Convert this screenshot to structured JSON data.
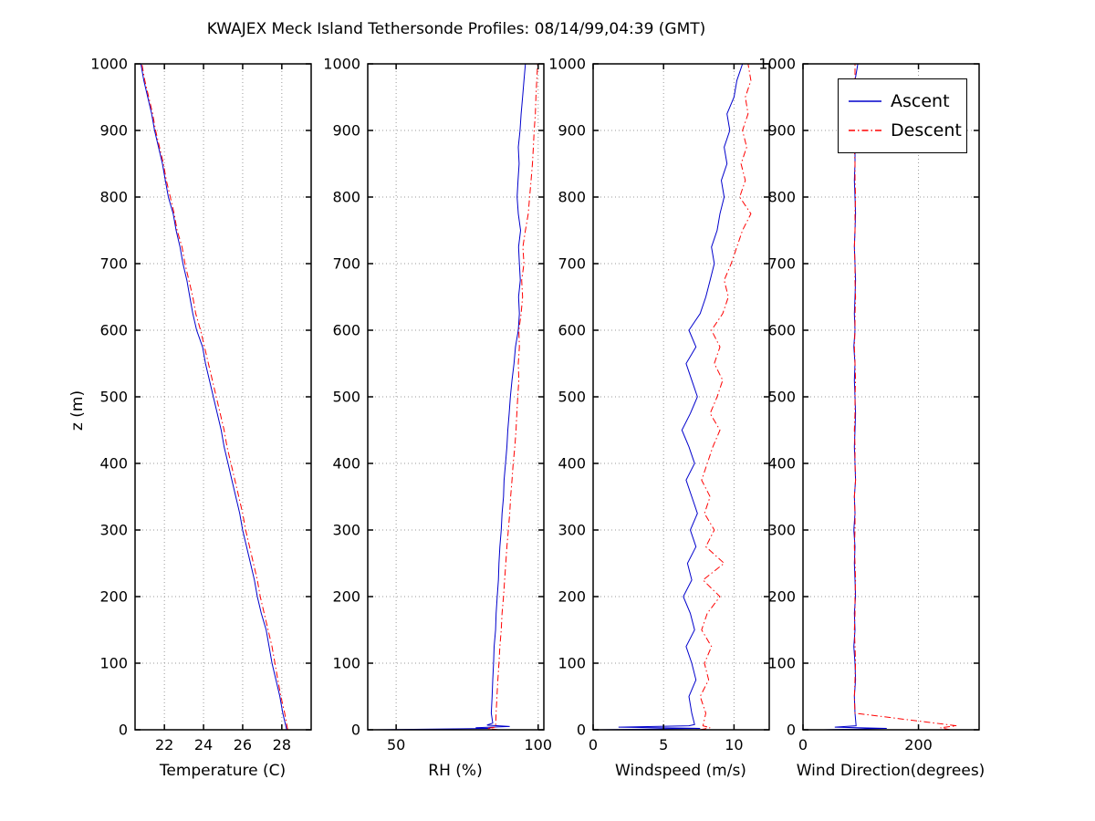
{
  "title": "KWAJEX Meck Island Tethersonde Profiles: 08/14/99,04:39 (GMT)",
  "ylabel": "z (m)",
  "legend": {
    "entries": [
      {
        "label": "Ascent",
        "color": "#0000cc",
        "dash": ""
      },
      {
        "label": "Descent",
        "color": "#ff0000",
        "dash": "7 3 1.5 3"
      }
    ]
  },
  "chart_data": [
    {
      "type": "line",
      "xlabel": "Temperature (C)",
      "xlim": [
        20.5,
        29.5
      ],
      "xticks": [
        22,
        24,
        26,
        28
      ],
      "ylim": [
        0,
        1000
      ],
      "yticks": [
        0,
        100,
        200,
        300,
        400,
        500,
        600,
        700,
        800,
        900,
        1000
      ],
      "series": [
        {
          "name": "Ascent",
          "color": "#0000cc",
          "dash": "",
          "z": [
            0,
            25,
            50,
            75,
            100,
            125,
            150,
            175,
            200,
            225,
            250,
            275,
            300,
            325,
            350,
            375,
            400,
            425,
            450,
            475,
            500,
            525,
            550,
            575,
            600,
            625,
            650,
            675,
            700,
            725,
            750,
            775,
            800,
            825,
            850,
            875,
            900,
            925,
            950,
            975,
            1000
          ],
          "x": [
            28.25,
            28.05,
            27.9,
            27.7,
            27.5,
            27.35,
            27.2,
            26.95,
            26.75,
            26.6,
            26.4,
            26.2,
            26.0,
            25.85,
            25.65,
            25.45,
            25.25,
            25.05,
            24.9,
            24.7,
            24.5,
            24.3,
            24.1,
            23.95,
            23.65,
            23.45,
            23.3,
            23.15,
            22.95,
            22.8,
            22.6,
            22.45,
            22.2,
            22.05,
            21.9,
            21.7,
            21.5,
            21.35,
            21.15,
            20.95,
            20.8
          ]
        },
        {
          "name": "Descent",
          "color": "#ff0000",
          "dash": "7 3 1.5 3",
          "z": [
            0,
            25,
            50,
            75,
            100,
            125,
            150,
            175,
            200,
            225,
            250,
            275,
            300,
            325,
            350,
            375,
            400,
            425,
            450,
            475,
            500,
            525,
            550,
            575,
            600,
            625,
            650,
            675,
            700,
            725,
            750,
            775,
            800,
            825,
            850,
            875,
            900,
            925,
            950,
            975,
            1000
          ],
          "x": [
            28.3,
            28.15,
            27.95,
            27.8,
            27.65,
            27.5,
            27.3,
            27.1,
            26.9,
            26.75,
            26.55,
            26.35,
            26.15,
            26.0,
            25.8,
            25.6,
            25.4,
            25.2,
            25.05,
            24.85,
            24.65,
            24.45,
            24.25,
            24.05,
            23.85,
            23.6,
            23.45,
            23.25,
            23.05,
            22.9,
            22.65,
            22.5,
            22.3,
            22.1,
            21.95,
            21.75,
            21.55,
            21.4,
            21.2,
            21.0,
            20.85
          ]
        }
      ]
    },
    {
      "type": "line",
      "xlabel": "RH (%)",
      "xlim": [
        40,
        102
      ],
      "xticks": [
        50,
        100
      ],
      "ylim": [
        0,
        1000
      ],
      "yticks": [
        0,
        100,
        200,
        300,
        400,
        500,
        600,
        700,
        800,
        900,
        1000
      ],
      "series": [
        {
          "name": "Ascent",
          "color": "#0000cc",
          "dash": "",
          "z": [
            0,
            2,
            3,
            5,
            7,
            10,
            25,
            50,
            75,
            100,
            125,
            150,
            175,
            200,
            225,
            250,
            275,
            300,
            325,
            350,
            375,
            400,
            425,
            450,
            475,
            500,
            525,
            550,
            575,
            600,
            625,
            650,
            675,
            700,
            725,
            750,
            775,
            800,
            825,
            850,
            875,
            900,
            925,
            950,
            975,
            1000
          ],
          "x": [
            42,
            83,
            78,
            90,
            82,
            84,
            83.5,
            83.8,
            84.0,
            84.3,
            84.5,
            85.0,
            85.2,
            85.6,
            86.0,
            86.2,
            86.5,
            87.0,
            87.3,
            87.8,
            88.0,
            88.5,
            89.0,
            89.3,
            89.8,
            90.2,
            90.8,
            91.5,
            92.0,
            93.0,
            93.4,
            93.1,
            93.7,
            93.4,
            93.1,
            93.8,
            93.0,
            92.6,
            92.9,
            93.3,
            93.0,
            93.6,
            94.0,
            94.5,
            95.0,
            95.5
          ]
        },
        {
          "name": "Descent",
          "color": "#ff0000",
          "dash": "7 3 1.5 3",
          "z": [
            0,
            2,
            4,
            25,
            50,
            75,
            100,
            125,
            150,
            175,
            200,
            225,
            250,
            275,
            300,
            325,
            350,
            375,
            400,
            425,
            450,
            475,
            500,
            525,
            550,
            575,
            600,
            625,
            650,
            675,
            700,
            725,
            750,
            775,
            800,
            825,
            850,
            875,
            900,
            925,
            950,
            975,
            1000
          ],
          "x": [
            86,
            82,
            85,
            85.2,
            85.5,
            85.8,
            86.2,
            86.5,
            87.0,
            87.3,
            87.8,
            88.2,
            88.6,
            89.0,
            89.5,
            90.0,
            90.3,
            90.8,
            91.2,
            91.8,
            92.2,
            92.5,
            92.8,
            93.2,
            93.0,
            93.4,
            93.2,
            94.0,
            94.5,
            94.2,
            95.0,
            94.6,
            95.5,
            96.5,
            97.0,
            97.5,
            98.0,
            98.3,
            98.6,
            99.0,
            99.2,
            99.5,
            99.8
          ]
        }
      ]
    },
    {
      "type": "line",
      "xlabel": "Windspeed (m/s)",
      "xlim": [
        0,
        12.5
      ],
      "xticks": [
        0,
        5,
        10
      ],
      "ylim": [
        0,
        1000
      ],
      "yticks": [
        0,
        100,
        200,
        300,
        400,
        500,
        600,
        700,
        800,
        900,
        1000
      ],
      "series": [
        {
          "name": "Ascent",
          "color": "#0000cc",
          "dash": "",
          "z": [
            0,
            2,
            4,
            6,
            8,
            25,
            50,
            75,
            100,
            125,
            150,
            175,
            200,
            225,
            250,
            275,
            300,
            325,
            350,
            375,
            400,
            425,
            450,
            475,
            500,
            525,
            550,
            575,
            600,
            625,
            650,
            675,
            700,
            725,
            750,
            775,
            800,
            825,
            850,
            875,
            900,
            925,
            950,
            975,
            1000
          ],
          "x": [
            0.4,
            7.6,
            1.8,
            6.8,
            7.2,
            7.0,
            6.8,
            7.3,
            7.0,
            6.6,
            7.2,
            6.9,
            6.4,
            7.0,
            6.7,
            7.3,
            6.9,
            7.4,
            7.0,
            6.6,
            7.2,
            6.8,
            6.3,
            6.9,
            7.4,
            7.0,
            6.6,
            7.3,
            6.8,
            7.6,
            8.0,
            8.3,
            8.6,
            8.4,
            8.8,
            9.0,
            9.3,
            9.1,
            9.5,
            9.3,
            9.7,
            9.5,
            10.0,
            10.2,
            10.6
          ]
        },
        {
          "name": "Descent",
          "color": "#ff0000",
          "dash": "7 3 1.5 3",
          "z": [
            0,
            3,
            6,
            25,
            50,
            75,
            100,
            125,
            150,
            175,
            200,
            225,
            250,
            275,
            300,
            325,
            350,
            375,
            400,
            425,
            450,
            475,
            500,
            525,
            550,
            575,
            600,
            625,
            650,
            675,
            700,
            725,
            750,
            775,
            800,
            825,
            850,
            875,
            900,
            925,
            950,
            975,
            1000
          ],
          "x": [
            7.6,
            8.3,
            7.8,
            8.0,
            7.6,
            8.2,
            7.9,
            8.4,
            7.7,
            8.1,
            9.0,
            7.8,
            9.3,
            8.0,
            8.6,
            7.9,
            8.3,
            7.7,
            8.1,
            8.5,
            9.0,
            8.3,
            8.8,
            9.2,
            8.6,
            9.0,
            8.4,
            9.2,
            9.6,
            9.3,
            9.8,
            10.2,
            10.6,
            11.2,
            10.4,
            10.8,
            10.5,
            10.9,
            10.6,
            11.0,
            10.8,
            11.2,
            11.0
          ]
        }
      ]
    },
    {
      "type": "line",
      "xlabel": "Wind Direction(degrees)",
      "xlim": [
        0,
        305
      ],
      "xticks": [
        0,
        200
      ],
      "ylim": [
        0,
        1000
      ],
      "yticks": [
        0,
        100,
        200,
        300,
        400,
        500,
        600,
        700,
        800,
        900,
        1000
      ],
      "series": [
        {
          "name": "Ascent",
          "color": "#0000cc",
          "dash": "",
          "z": [
            0,
            2,
            4,
            6,
            25,
            50,
            75,
            100,
            125,
            150,
            175,
            200,
            225,
            250,
            275,
            300,
            325,
            350,
            375,
            400,
            425,
            450,
            475,
            500,
            525,
            550,
            575,
            600,
            625,
            650,
            675,
            700,
            725,
            750,
            775,
            800,
            825,
            850,
            875,
            900,
            925,
            950,
            975,
            1000
          ],
          "x": [
            35,
            145,
            55,
            92,
            90,
            89,
            91,
            90,
            88,
            90,
            89,
            91,
            90,
            89,
            90,
            88,
            90,
            89,
            91,
            90,
            89,
            90,
            91,
            90,
            89,
            90,
            88,
            90,
            89,
            90,
            91,
            90,
            89,
            90,
            91,
            90,
            89,
            90,
            90,
            91,
            90,
            92,
            90,
            95
          ]
        },
        {
          "name": "Descent",
          "color": "#ff0000",
          "dash": "7 3 1.5 3",
          "z": [
            0,
            3,
            6,
            25,
            50,
            75,
            100,
            125,
            150,
            175,
            200,
            225,
            250,
            275,
            300,
            325,
            350,
            375,
            400,
            425,
            450,
            475,
            500,
            525,
            550,
            575,
            600,
            625,
            650,
            675,
            700,
            725,
            750,
            775,
            800,
            825,
            850,
            875,
            900,
            925,
            950,
            975,
            1000
          ],
          "x": [
            255,
            238,
            266,
            90,
            89,
            90,
            91,
            90,
            89,
            90,
            90,
            91,
            90,
            89,
            90,
            90,
            89,
            91,
            90,
            90,
            89,
            90,
            90,
            91,
            90,
            89,
            90,
            90,
            91,
            90,
            90,
            89,
            90,
            90,
            91,
            90,
            90,
            89,
            90,
            91,
            90,
            90,
            90
          ]
        }
      ]
    }
  ]
}
